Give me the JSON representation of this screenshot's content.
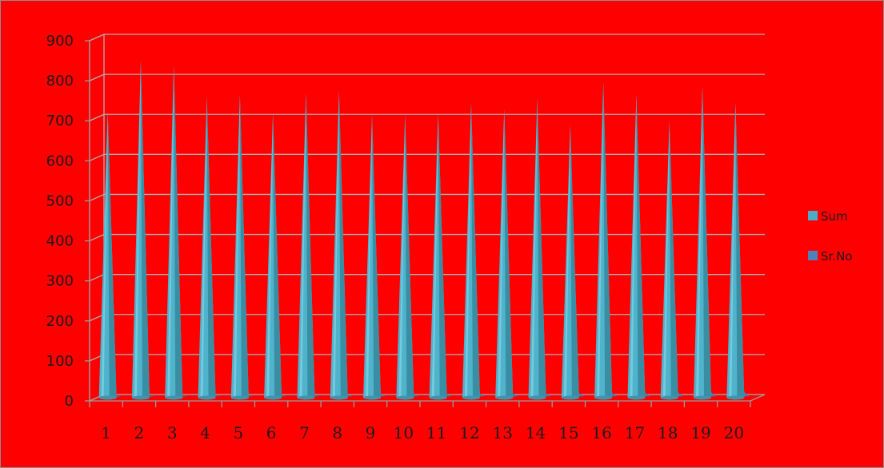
{
  "chart_data": {
    "type": "bar",
    "style": "3d-cone",
    "title": "",
    "xlabel": "",
    "ylabel": "",
    "ylim": [
      0,
      900
    ],
    "yticks": [
      0,
      100,
      200,
      300,
      400,
      500,
      600,
      700,
      800,
      900
    ],
    "categories": [
      "1",
      "2",
      "3",
      "4",
      "5",
      "6",
      "7",
      "8",
      "9",
      "10",
      "11",
      "12",
      "13",
      "14",
      "15",
      "16",
      "17",
      "18",
      "19",
      "20"
    ],
    "series": [
      {
        "name": "Sum",
        "color": "#4bacc6",
        "values": [
          725,
          850,
          840,
          760,
          765,
          720,
          770,
          775,
          715,
          715,
          720,
          745,
          730,
          755,
          690,
          795,
          765,
          700,
          785,
          745
        ]
      },
      {
        "name": "Sr.No",
        "color": "#4f81bd",
        "values": [
          1,
          2,
          3,
          4,
          5,
          6,
          7,
          8,
          9,
          10,
          11,
          12,
          13,
          14,
          15,
          16,
          17,
          18,
          19,
          20
        ]
      }
    ],
    "grid": true,
    "legend": "right",
    "background": "#ff0000"
  }
}
